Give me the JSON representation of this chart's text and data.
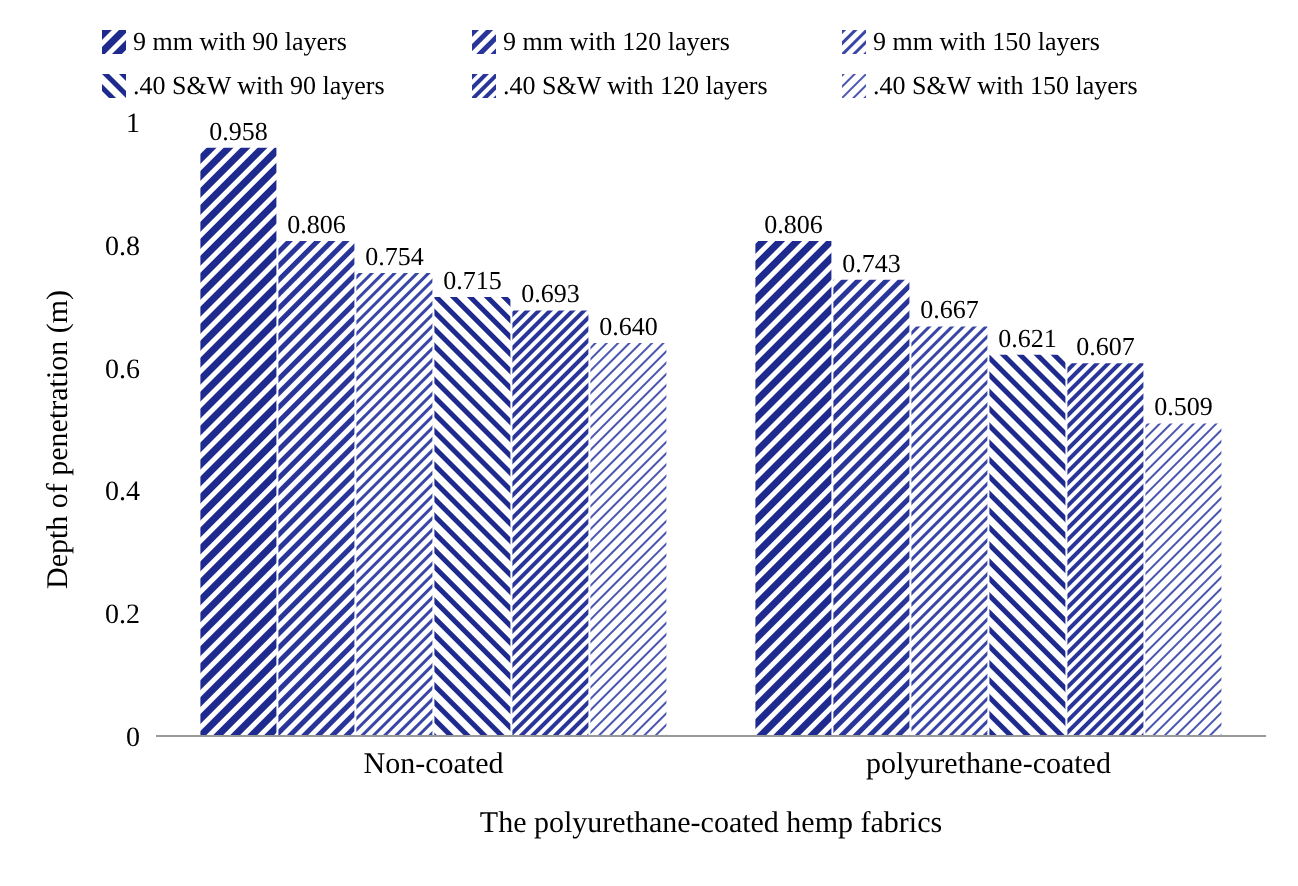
{
  "chart_data": {
    "type": "bar",
    "xlabel": "The polyurethane-coated hemp fabrics",
    "ylabel": "Depth of penetration (m)",
    "categories": [
      "Non-coated",
      "polyurethane-coated"
    ],
    "ylim": [
      0,
      1
    ],
    "yticks": [
      0,
      0.2,
      0.4,
      0.6,
      0.8,
      1
    ],
    "legend": "top",
    "series": [
      {
        "name": "9 mm with 90 layers",
        "color": "#1f2a8f",
        "values": [
          0.958,
          0.806
        ],
        "value_labels": [
          "0.958",
          "0.806"
        ]
      },
      {
        "name": "9 mm with 120 layers",
        "color": "#2a3599",
        "values": [
          0.806,
          0.743
        ],
        "value_labels": [
          "0.806",
          "0.743"
        ]
      },
      {
        "name": "9 mm with 150 layers",
        "color": "#3a46a6",
        "values": [
          0.754,
          0.667
        ],
        "value_labels": [
          "0.754",
          "0.667"
        ]
      },
      {
        "name": ".40 S&W with 90 layers",
        "color": "#1f2a8f",
        "values": [
          0.715,
          0.621
        ],
        "value_labels": [
          "0.715",
          "0.621"
        ]
      },
      {
        "name": ".40 S&W with 120 layers",
        "color": "#2a3599",
        "values": [
          0.693,
          0.607
        ],
        "value_labels": [
          "0.693",
          "0.607"
        ]
      },
      {
        "name": ".40 S&W with 150 layers",
        "color": "#4a56b0",
        "values": [
          0.64,
          0.509
        ],
        "value_labels": [
          "0.640",
          "0.509"
        ]
      }
    ]
  }
}
